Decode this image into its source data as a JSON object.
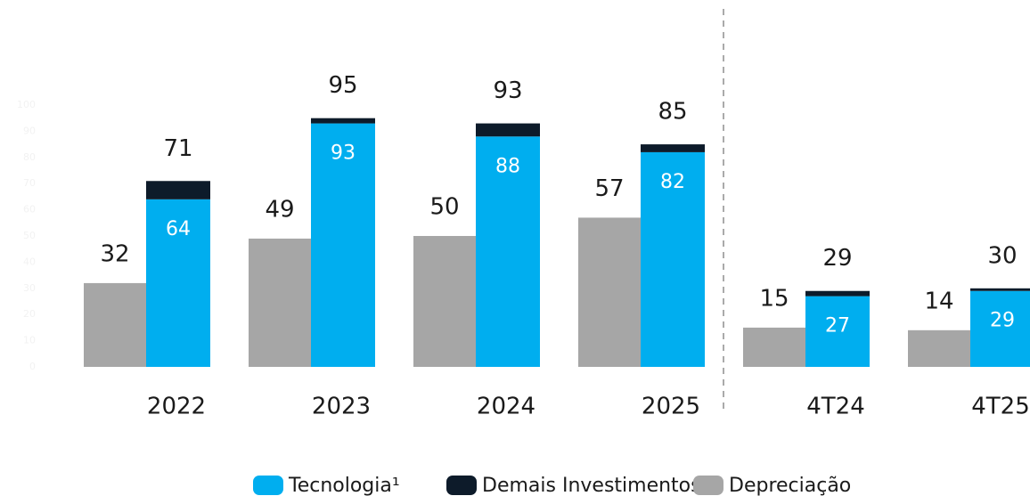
{
  "chart_data": {
    "type": "bar",
    "categories": [
      "2022",
      "2023",
      "2024",
      "2025",
      "4T24",
      "4T25"
    ],
    "series": [
      {
        "name": "Tecnologia¹",
        "color": "#00aeef",
        "values": [
          64,
          93,
          88,
          82,
          27,
          29
        ]
      },
      {
        "name": "Demais Investimentos",
        "color": "#0d1b2a",
        "values": [
          7,
          2,
          5,
          3,
          2,
          1
        ]
      },
      {
        "name": "Depreciação",
        "color": "#a6a6a6",
        "values": [
          32,
          49,
          50,
          57,
          15,
          14
        ]
      }
    ],
    "totals": [
      71,
      95,
      93,
      85,
      29,
      30
    ],
    "ylim": [
      0,
      100
    ],
    "yticks": [
      0,
      10,
      20,
      30,
      40,
      50,
      60,
      70,
      80,
      90,
      100
    ]
  }
}
